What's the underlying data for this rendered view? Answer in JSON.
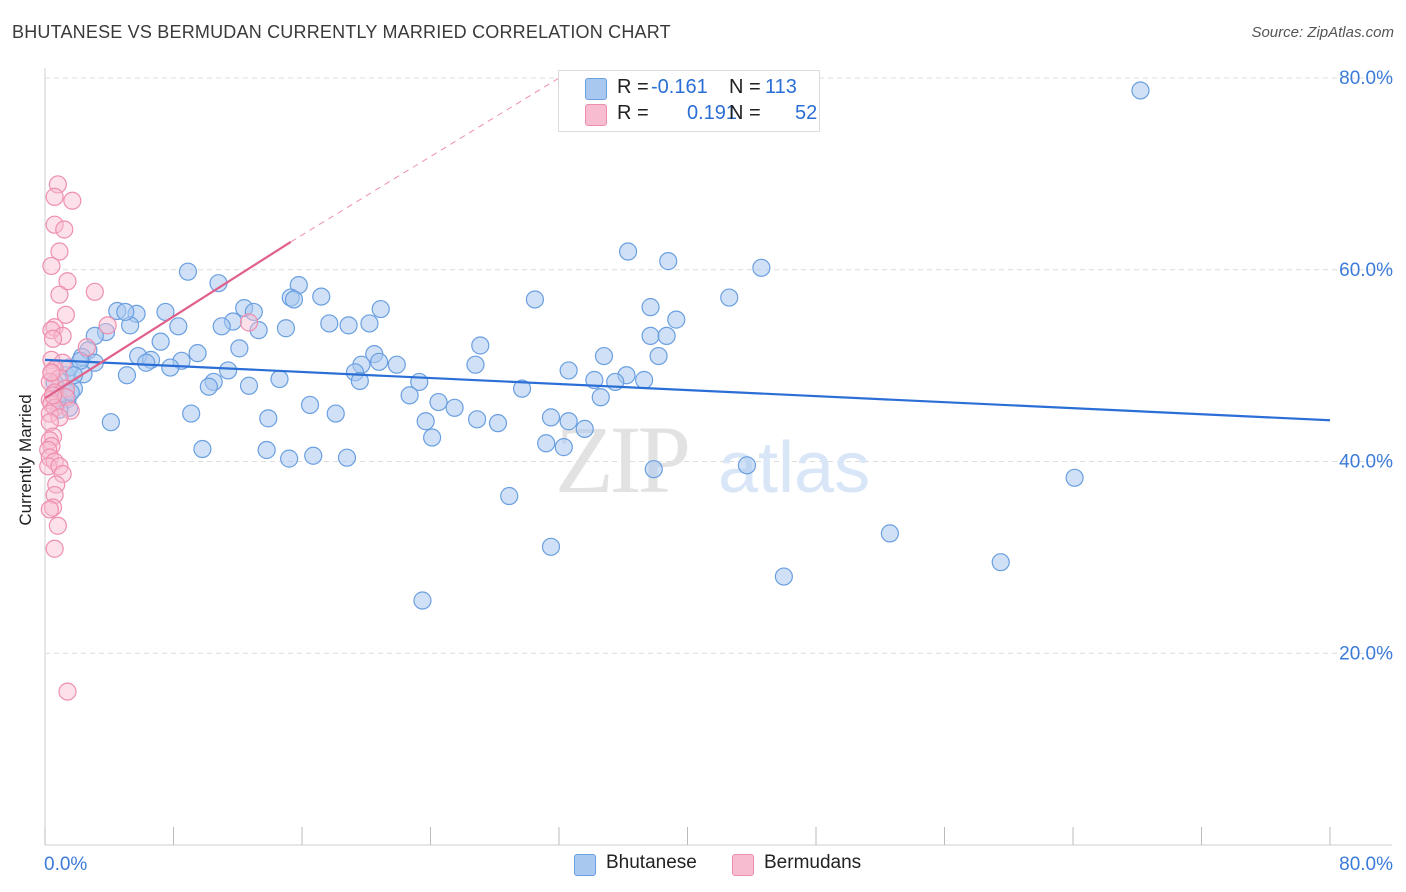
{
  "header": {
    "title": "BHUTANESE VS BERMUDAN CURRENTLY MARRIED CORRELATION CHART",
    "source": "Source: ZipAtlas.com"
  },
  "legend": {
    "rows": [
      {
        "r_label": "R =",
        "r_value": "-0.161",
        "n_label": "N =",
        "n_value": "113"
      },
      {
        "r_label": "R =",
        "r_value": "0.191",
        "n_label": "N =",
        "n_value": "52"
      }
    ]
  },
  "bottom_legend": {
    "series1": "Bhutanese",
    "series2": "Bermudans"
  },
  "colors": {
    "blue_fill": "#a9c8f0",
    "blue_stroke": "#6a9fe0",
    "blue_line": "#2b6fd6",
    "pink_fill": "#f8bcd0",
    "pink_stroke": "#ee8fae",
    "pink_line": "#e0608a",
    "tick_label": "#3b7bd9",
    "grid": "#dcdcdc",
    "watermark": "#e6e6e6"
  },
  "watermark": {
    "zip": "ZIP",
    "atlas": "atlas"
  },
  "chart_data": {
    "type": "scatter",
    "title": "BHUTANESE VS BERMUDAN CURRENTLY MARRIED CORRELATION CHART",
    "xlabel": "",
    "ylabel": "Currently Married",
    "xlim": [
      0,
      80
    ],
    "ylim": [
      0,
      80
    ],
    "x_tick_labels": [
      "0.0%",
      "80.0%"
    ],
    "y_ticks": [
      {
        "value": 20,
        "label": "20.0%"
      },
      {
        "value": 40,
        "label": "40.0%"
      },
      {
        "value": 60,
        "label": "60.0%"
      },
      {
        "value": 80,
        "label": "80.0%"
      }
    ],
    "series": [
      {
        "name": "Bhutanese",
        "r": -0.161,
        "n": 113,
        "trend": [
          [
            0,
            50.6
          ],
          [
            80,
            44.3
          ]
        ],
        "points": [
          [
            68.2,
            78.7
          ],
          [
            36.3,
            61.9
          ],
          [
            38.8,
            60.9
          ],
          [
            44.6,
            60.2
          ],
          [
            8.9,
            59.8
          ],
          [
            10.8,
            58.6
          ],
          [
            15.8,
            58.4
          ],
          [
            17.2,
            57.2
          ],
          [
            15.3,
            57.1
          ],
          [
            15.5,
            56.9
          ],
          [
            30.5,
            56.9
          ],
          [
            42.6,
            57.1
          ],
          [
            37.7,
            56.1
          ],
          [
            12.4,
            56.0
          ],
          [
            20.9,
            55.9
          ],
          [
            13.0,
            55.6
          ],
          [
            4.5,
            55.7
          ],
          [
            7.5,
            55.6
          ],
          [
            5.7,
            55.4
          ],
          [
            39.3,
            54.8
          ],
          [
            11.7,
            54.6
          ],
          [
            11.0,
            54.1
          ],
          [
            17.7,
            54.4
          ],
          [
            20.2,
            54.4
          ],
          [
            18.9,
            54.2
          ],
          [
            8.3,
            54.1
          ],
          [
            5.3,
            54.2
          ],
          [
            15.0,
            53.9
          ],
          [
            13.3,
            53.7
          ],
          [
            3.8,
            53.5
          ],
          [
            3.1,
            53.1
          ],
          [
            37.7,
            53.1
          ],
          [
            38.7,
            53.1
          ],
          [
            7.2,
            52.5
          ],
          [
            27.1,
            52.1
          ],
          [
            2.7,
            51.6
          ],
          [
            12.1,
            51.8
          ],
          [
            9.5,
            51.3
          ],
          [
            20.5,
            51.2
          ],
          [
            34.8,
            51.0
          ],
          [
            5.8,
            51.0
          ],
          [
            38.2,
            51.0
          ],
          [
            2.3,
            50.9
          ],
          [
            6.6,
            50.6
          ],
          [
            8.5,
            50.5
          ],
          [
            6.3,
            50.3
          ],
          [
            3.1,
            50.3
          ],
          [
            20.8,
            50.4
          ],
          [
            19.7,
            50.1
          ],
          [
            21.9,
            50.1
          ],
          [
            26.8,
            50.1
          ],
          [
            32.6,
            49.5
          ],
          [
            7.8,
            49.8
          ],
          [
            11.4,
            49.5
          ],
          [
            19.3,
            49.3
          ],
          [
            36.2,
            49.0
          ],
          [
            1.3,
            49.0
          ],
          [
            2.4,
            49.1
          ],
          [
            5.1,
            49.0
          ],
          [
            37.3,
            48.5
          ],
          [
            10.5,
            48.3
          ],
          [
            19.6,
            48.4
          ],
          [
            23.3,
            48.3
          ],
          [
            14.6,
            48.6
          ],
          [
            34.2,
            48.5
          ],
          [
            35.5,
            48.3
          ],
          [
            10.2,
            47.8
          ],
          [
            12.7,
            47.9
          ],
          [
            1.8,
            47.6
          ],
          [
            29.7,
            47.6
          ],
          [
            1.3,
            47.2
          ],
          [
            22.7,
            46.9
          ],
          [
            1.4,
            46.5
          ],
          [
            34.6,
            46.7
          ],
          [
            24.5,
            46.2
          ],
          [
            16.5,
            45.9
          ],
          [
            1.5,
            45.6
          ],
          [
            25.5,
            45.6
          ],
          [
            9.1,
            45.0
          ],
          [
            18.1,
            45.0
          ],
          [
            31.5,
            44.6
          ],
          [
            13.9,
            44.5
          ],
          [
            26.9,
            44.4
          ],
          [
            23.7,
            44.2
          ],
          [
            4.1,
            44.1
          ],
          [
            28.2,
            44.0
          ],
          [
            32.6,
            44.2
          ],
          [
            33.6,
            43.4
          ],
          [
            24.1,
            42.5
          ],
          [
            31.2,
            41.9
          ],
          [
            32.3,
            41.5
          ],
          [
            9.8,
            41.3
          ],
          [
            13.8,
            41.2
          ],
          [
            15.2,
            40.3
          ],
          [
            16.7,
            40.6
          ],
          [
            18.8,
            40.4
          ],
          [
            37.9,
            39.2
          ],
          [
            43.7,
            39.6
          ],
          [
            64.1,
            38.3
          ],
          [
            28.9,
            36.4
          ],
          [
            52.6,
            32.5
          ],
          [
            31.5,
            31.1
          ],
          [
            59.5,
            29.5
          ],
          [
            46.0,
            28.0
          ],
          [
            23.5,
            25.5
          ],
          [
            1.5,
            49.8
          ],
          [
            0.8,
            46.6
          ],
          [
            2.2,
            50.5
          ],
          [
            5.0,
            55.6
          ],
          [
            0.6,
            48.2
          ],
          [
            1.8,
            49.0
          ],
          [
            0.9,
            45.4
          ],
          [
            1.6,
            47.2
          ]
        ]
      },
      {
        "name": "Bermudans",
        "r": 0.191,
        "n": 52,
        "trend": [
          [
            0,
            46.6
          ],
          [
            15.3,
            62.9
          ]
        ],
        "trend_extension": [
          [
            15.3,
            62.9
          ],
          [
            32.0,
            80.0
          ]
        ],
        "points": [
          [
            0.8,
            68.9
          ],
          [
            0.6,
            67.6
          ],
          [
            1.7,
            67.2
          ],
          [
            0.6,
            64.7
          ],
          [
            1.2,
            64.2
          ],
          [
            0.9,
            61.9
          ],
          [
            0.4,
            60.4
          ],
          [
            1.4,
            58.8
          ],
          [
            3.1,
            57.7
          ],
          [
            0.9,
            57.4
          ],
          [
            1.3,
            55.3
          ],
          [
            3.9,
            54.2
          ],
          [
            0.6,
            54.0
          ],
          [
            0.4,
            53.7
          ],
          [
            12.7,
            54.5
          ],
          [
            1.1,
            53.1
          ],
          [
            0.5,
            52.8
          ],
          [
            2.6,
            51.9
          ],
          [
            0.4,
            50.6
          ],
          [
            1.1,
            50.3
          ],
          [
            0.6,
            49.6
          ],
          [
            0.4,
            49.2
          ],
          [
            0.9,
            48.7
          ],
          [
            0.3,
            48.3
          ],
          [
            1.3,
            47.6
          ],
          [
            0.6,
            47.2
          ],
          [
            1.3,
            46.7
          ],
          [
            0.3,
            46.4
          ],
          [
            0.4,
            46.0
          ],
          [
            0.6,
            45.6
          ],
          [
            1.6,
            45.3
          ],
          [
            0.3,
            45.0
          ],
          [
            0.9,
            44.6
          ],
          [
            0.3,
            44.1
          ],
          [
            0.5,
            42.6
          ],
          [
            0.3,
            42.2
          ],
          [
            0.4,
            41.6
          ],
          [
            0.2,
            41.2
          ],
          [
            0.3,
            40.4
          ],
          [
            0.6,
            40.0
          ],
          [
            0.2,
            39.5
          ],
          [
            0.9,
            39.5
          ],
          [
            1.1,
            38.7
          ],
          [
            0.7,
            37.6
          ],
          [
            0.6,
            36.5
          ],
          [
            0.5,
            35.2
          ],
          [
            0.3,
            35.0
          ],
          [
            0.8,
            33.3
          ],
          [
            0.6,
            30.9
          ],
          [
            1.4,
            16.0
          ],
          [
            0.4,
            49.3
          ],
          [
            0.5,
            46.9
          ]
        ]
      }
    ]
  }
}
